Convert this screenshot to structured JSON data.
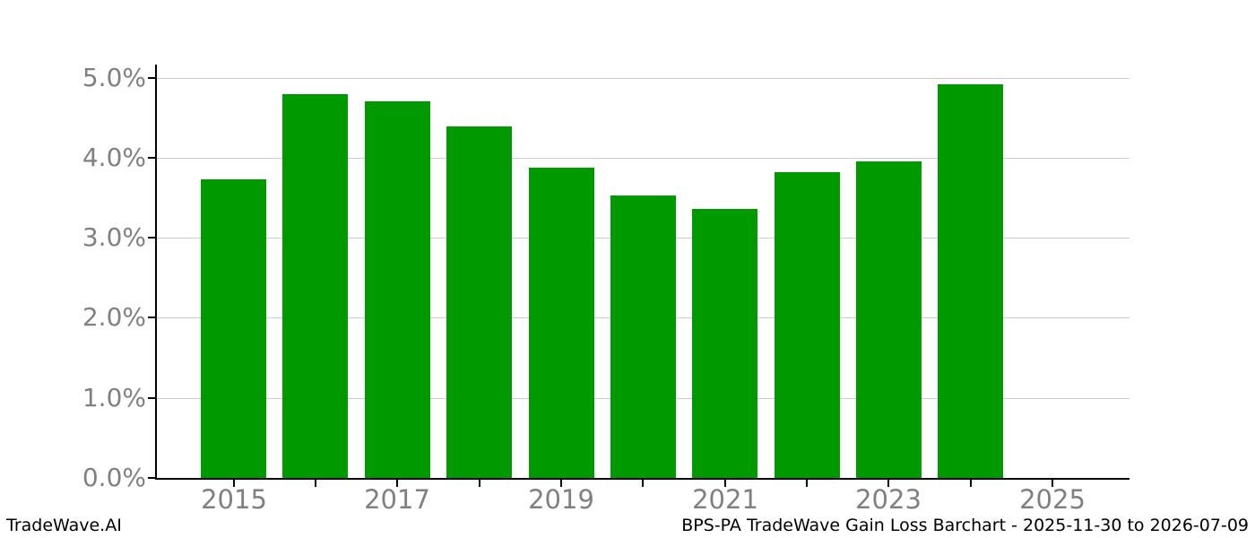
{
  "footer": {
    "left_brand": "TradeWave.AI",
    "right_caption": "BPS-PA TradeWave Gain Loss Barchart - 2025-11-30 to 2026-07-09"
  },
  "chart_data": {
    "type": "bar",
    "title": "",
    "xlabel": "",
    "ylabel": "",
    "categories": [
      "2015",
      "2016",
      "2017",
      "2018",
      "2019",
      "2020",
      "2021",
      "2022",
      "2023",
      "2024",
      "2025"
    ],
    "values": [
      3.73,
      4.8,
      4.7,
      4.39,
      3.88,
      3.53,
      3.36,
      3.82,
      3.95,
      4.92,
      0
    ],
    "x_tick_labels_shown": [
      "2015",
      "2017",
      "2019",
      "2021",
      "2023",
      "2025"
    ],
    "y_tick_values": [
      0,
      1,
      2,
      3,
      4,
      5
    ],
    "y_tick_labels": [
      "0.0%",
      "1.0%",
      "2.0%",
      "3.0%",
      "4.0%",
      "5.0%"
    ],
    "ylim": [
      0,
      5.17
    ],
    "grid": "horizontal",
    "legend": "none",
    "colors": {
      "bar": "#009a00",
      "grid": "#cccccc",
      "axis": "#000000",
      "tick_label": "#808080"
    }
  }
}
